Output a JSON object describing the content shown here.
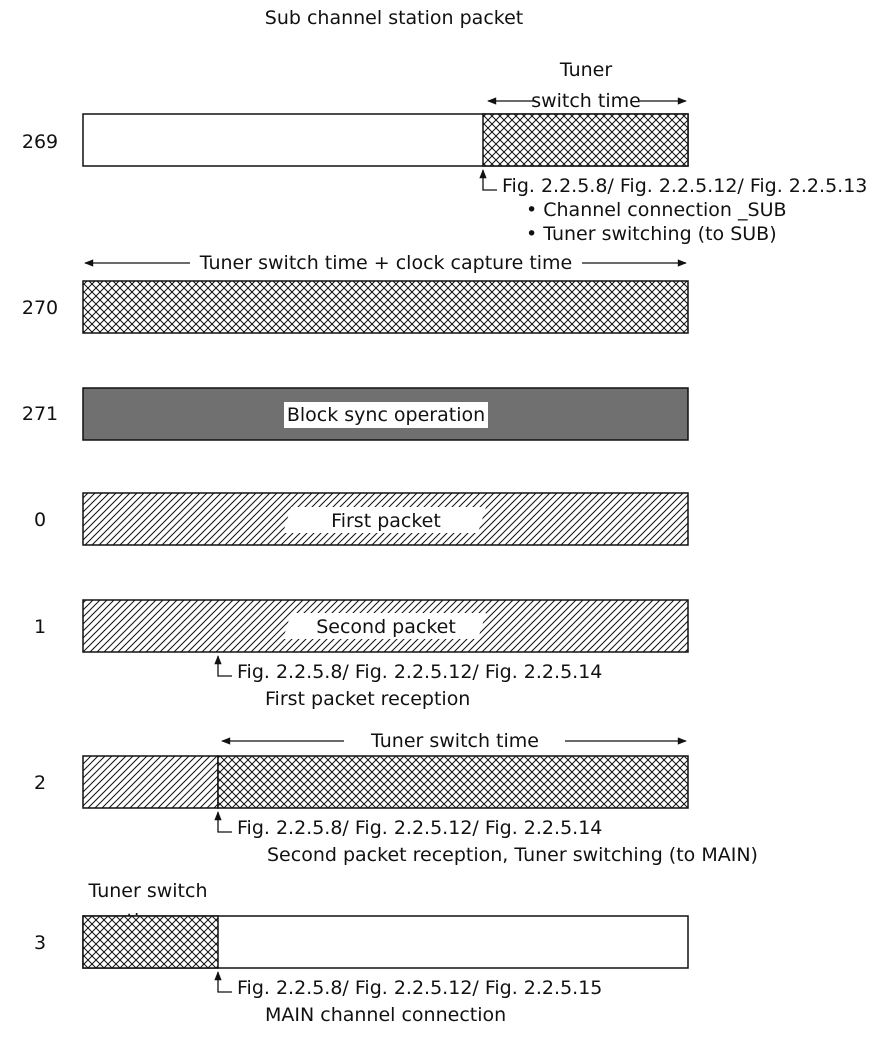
{
  "title": "Sub channel station packet",
  "colors": {
    "line": "#111111",
    "dark_fill": "#707070",
    "background": "#ffffff"
  },
  "rows": [
    {
      "num": "269"
    },
    {
      "num": "270"
    },
    {
      "num": "271",
      "inner_label": "Block sync operation"
    },
    {
      "num": "0",
      "inner_label": "First packet"
    },
    {
      "num": "1",
      "inner_label": "Second packet"
    },
    {
      "num": "2"
    },
    {
      "num": "3"
    }
  ],
  "spans": {
    "row269_top": "Tuner",
    "row269_bottom": "switch time",
    "row270": "Tuner switch time + clock capture time",
    "row2": "Tuner switch time",
    "row3_top": "Tuner switch",
    "row3_bottom": "time"
  },
  "notes": {
    "row269": {
      "ref": "Fig. 2.2.5.8/ Fig. 2.2.5.12/ Fig. 2.2.5.13",
      "line1": "• Channel connection _SUB",
      "line2": "• Tuner switching (to SUB)"
    },
    "row1": {
      "ref": "Fig. 2.2.5.8/ Fig. 2.2.5.12/ Fig. 2.2.5.14",
      "line1": "First packet reception"
    },
    "row2": {
      "ref": "Fig. 2.2.5.8/ Fig. 2.2.5.12/ Fig. 2.2.5.14",
      "line1": "Second packet reception, Tuner switching (to MAIN)"
    },
    "row3": {
      "ref": "Fig. 2.2.5.8/ Fig. 2.2.5.12/ Fig. 2.2.5.15",
      "line1": "MAIN channel connection"
    }
  }
}
